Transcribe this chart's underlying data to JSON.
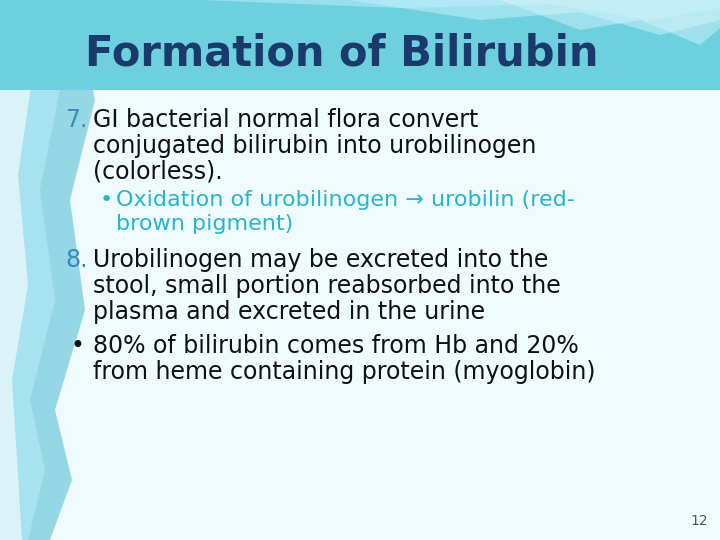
{
  "title": "Formation of Bilirubin",
  "title_color": "#1a3a6b",
  "title_bg_top": "#7dd8e8",
  "title_bg_bottom": "#5bbdd0",
  "bg_color": "#f0fbfd",
  "item7_text_line1": "GI bacterial normal flora convert",
  "item7_text_line2": "conjugated bilirubin into urobilinogen",
  "item7_text_line3": "(colorless).",
  "item7_sub_line1": "Oxidation of urobilinogen → urobilin (red-",
  "item7_sub_line2": "brown pigment)",
  "item7_sub_color": "#29b5cc",
  "item8_text_line1": "Urobilinogen may be excreted into the",
  "item8_text_line2": "stool, small portion reabsorbed into the",
  "item8_text_line3": "plasma and excreted in the urine",
  "bullet_text_line1": "80% of bilirubin comes from Hb and 20%",
  "bullet_text_line2": "from heme containing protein (myoglobin)",
  "main_text_color": "#111111",
  "number_color": "#3a8abf",
  "page_number": "12",
  "font_size_title": 30,
  "font_size_body": 17,
  "font_size_sub": 16,
  "font_size_page": 10
}
